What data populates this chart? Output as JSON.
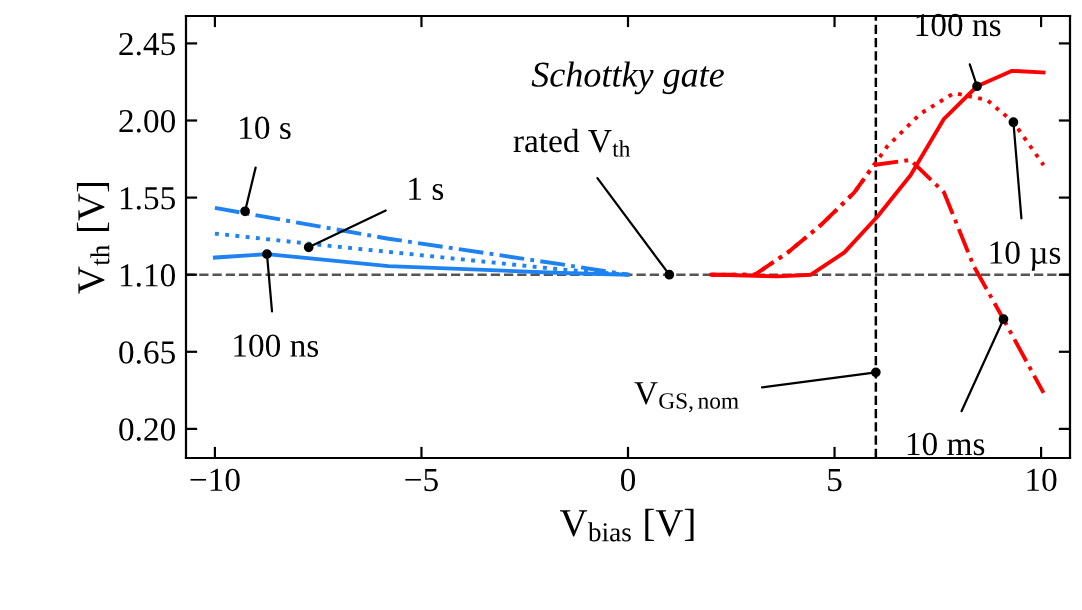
{
  "chart_data": {
    "type": "line",
    "xlabel": "V$_{bias}$ [V]",
    "ylabel": "V$_{th}$ [V]",
    "xlim": [
      -10.7,
      10.7
    ],
    "ylim": [
      0.03,
      2.61
    ],
    "xticks": [
      {
        "value": -10,
        "label": "−10"
      },
      {
        "value": -5,
        "label": "−5"
      },
      0,
      5,
      10
    ],
    "yticks": [
      {
        "value": 0.2,
        "label": "0.20"
      },
      {
        "value": 0.65,
        "label": "0.65"
      },
      {
        "value": 1.1,
        "label": "1.10"
      },
      {
        "value": 1.55,
        "label": "1.55"
      },
      {
        "value": 2.0,
        "label": "2.00"
      },
      {
        "value": 2.45,
        "label": "2.45"
      }
    ],
    "grid": false,
    "legend": false,
    "marker": "none",
    "series": [
      {
        "color": "#1e82f0",
        "line_style": "solid",
        "x": [
          -10,
          -8.74,
          -5.8,
          -1.6,
          0
        ],
        "values": [
          1.2,
          1.22,
          1.15,
          1.11,
          1.1
        ]
      },
      {
        "color": "#1e82f0",
        "line_style": "dotted",
        "x": [
          -10,
          -7.3,
          -1.6,
          0
        ],
        "values": [
          1.34,
          1.27,
          1.13,
          1.1
        ]
      },
      {
        "color": "#1e82f0",
        "line_style": "dashdot",
        "x": [
          -10,
          -5.8,
          -1.6,
          0
        ],
        "values": [
          1.49,
          1.31,
          1.16,
          1.1
        ]
      },
      {
        "color": "#ff0000",
        "line_style": "solid",
        "x": [
          2.02,
          3.63,
          4.43,
          5.24,
          6.04,
          6.84,
          7.65,
          8.45,
          9.3,
          10.06
        ],
        "values": [
          1.1,
          1.09,
          1.1,
          1.23,
          1.44,
          1.68,
          2.01,
          2.2,
          2.29,
          2.28
        ]
      },
      {
        "color": "#ff0000",
        "line_style": "dotted",
        "x": [
          2.02,
          3.07,
          3.87,
          4.67,
          5.48,
          6.28,
          7.08,
          7.89,
          8.69,
          9.33,
          10.06
        ],
        "values": [
          1.1,
          1.1,
          1.23,
          1.39,
          1.58,
          1.85,
          2.04,
          2.16,
          2.12,
          1.99,
          1.74
        ]
      },
      {
        "color": "#ff0000",
        "line_style": "dashdot",
        "x": [
          2.02,
          3.07,
          3.87,
          4.67,
          5.48,
          5.95,
          6.84,
          7.65,
          8.37,
          9.09,
          10.06
        ],
        "values": [
          1.1,
          1.1,
          1.23,
          1.39,
          1.58,
          1.74,
          1.77,
          1.58,
          1.15,
          0.84,
          0.41
        ]
      }
    ],
    "ref_lines": [
      {
        "axis": "y",
        "value": 1.1,
        "color": "#555555",
        "line_style": "dashed"
      },
      {
        "axis": "x",
        "value": 6,
        "color": "#000000",
        "line_style": "dashed"
      }
    ],
    "annotations": [
      "Schottky gate",
      {
        "text": "rated V$_{th}$",
        "x": 1,
        "y": 1.1
      },
      {
        "text": "V$_{GS,nom}$",
        "x": 6,
        "y": 0.53
      },
      {
        "text": "10 s",
        "x": -9.27,
        "y": 1.47
      },
      {
        "text": "1 s",
        "x": -7.73,
        "y": 1.26
      },
      {
        "text": "100 ns",
        "x": -8.74,
        "y": 1.22
      },
      {
        "text": "100 ns",
        "x": 8.45,
        "y": 2.2
      },
      {
        "text": "10 µs",
        "x": 9.33,
        "y": 1.99
      },
      {
        "text": "10 ms",
        "x": 9.09,
        "y": 0.84
      }
    ]
  }
}
